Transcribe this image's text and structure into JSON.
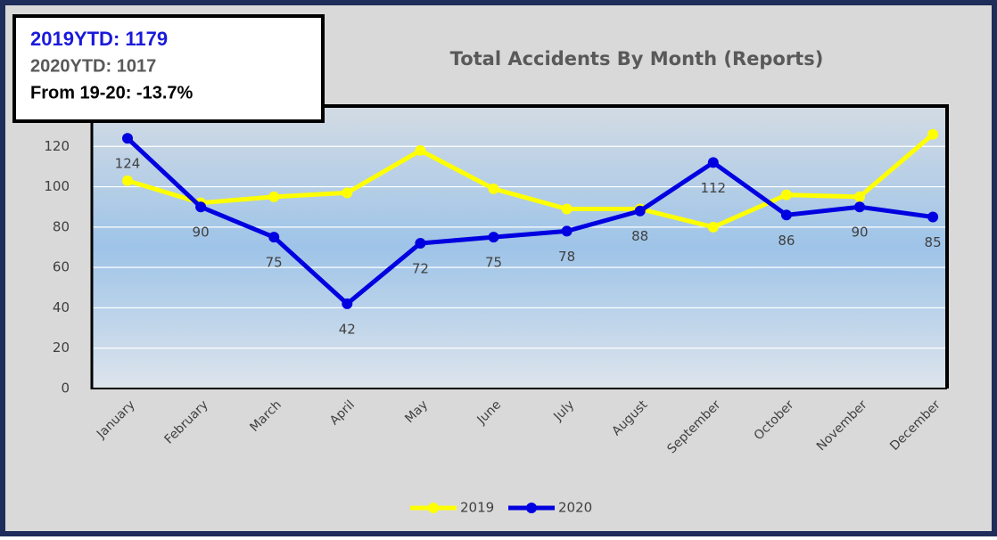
{
  "chart_data": {
    "type": "line",
    "title": "Total Accidents By Month (Reports)",
    "annotations": [
      {
        "text": "2019YTD: 1179",
        "color": "#1a1adb"
      },
      {
        "text": "2020YTD: 1017",
        "color": "#595959"
      },
      {
        "text": "From 19-20: -13.7%",
        "color": "#000000"
      }
    ],
    "categories": [
      "January",
      "February",
      "March",
      "April",
      "May",
      "June",
      "July",
      "August",
      "September",
      "October",
      "November",
      "December"
    ],
    "series": [
      {
        "name": "2019",
        "color": "#ffff00",
        "values": [
          103,
          92,
          95,
          97,
          118,
          99,
          89,
          89,
          80,
          96,
          95,
          126
        ]
      },
      {
        "name": "2020",
        "color": "#0000e0",
        "values": [
          124,
          90,
          75,
          42,
          72,
          75,
          78,
          88,
          112,
          86,
          90,
          85
        ],
        "data_labels": true
      }
    ],
    "ylim": [
      0,
      140
    ],
    "yticks": [
      0,
      20,
      40,
      60,
      80,
      100,
      120
    ],
    "grid": true,
    "legend": "bottom"
  }
}
